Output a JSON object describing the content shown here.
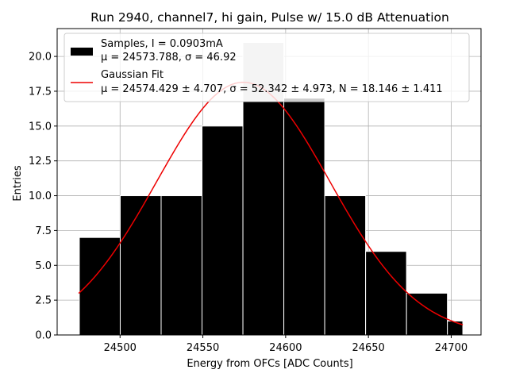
{
  "chart_data": {
    "type": "bar",
    "title": "Run 2940, channel7, hi gain, Pulse w/ 15.0 dB Attenuation",
    "xlabel": "Energy from OFCs [ADC Counts]",
    "ylabel": "Entries",
    "xlim": [
      24462,
      24718
    ],
    "ylim": [
      0,
      22
    ],
    "xticks": [
      24500,
      24550,
      24600,
      24650,
      24700
    ],
    "yticks": [
      0.0,
      2.5,
      5.0,
      7.5,
      10.0,
      12.5,
      15.0,
      17.5,
      20.0
    ],
    "xtick_labels": [
      "24500",
      "24550",
      "24600",
      "24650",
      "24700"
    ],
    "ytick_labels": [
      "0.0",
      "2.5",
      "5.0",
      "7.5",
      "10.0",
      "12.5",
      "15.0",
      "17.5",
      "20.0"
    ],
    "grid": true,
    "legend_position": "top",
    "bins": {
      "edges": [
        24475.4,
        24500.1,
        24524.8,
        24549.5,
        24574.2,
        24598.9,
        24623.6,
        24648.3,
        24673.0,
        24697.7,
        24707.0
      ],
      "left_edges": [
        24475.4,
        24500.1,
        24524.8,
        24549.5,
        24574.2,
        24598.9,
        24623.6,
        24648.3,
        24673.0,
        24697.7
      ],
      "right_edges": [
        24500.1,
        24524.8,
        24549.5,
        24574.2,
        24598.9,
        24623.6,
        24648.3,
        24673.0,
        24697.7,
        24707.0
      ]
    },
    "series": [
      {
        "name": "Samples, I = 0.0903mA",
        "label_line2": "μ = 24573.788, σ = 46.92",
        "type": "histogram",
        "values": [
          7,
          10,
          10,
          15,
          21,
          17,
          10,
          6,
          3,
          1
        ],
        "color": "#000000",
        "highlight_color": "#c8c8c8"
      },
      {
        "name": "Gaussian Fit",
        "label_line2": "μ = 24574.429 ± 4.707, σ = 52.342 ± 4.973, N = 18.146 ± 1.411",
        "type": "line",
        "mu": 24574.429,
        "sigma": 52.342,
        "N": 18.146,
        "x_range": [
          24475,
          24707
        ],
        "color": "#ee0000"
      }
    ]
  }
}
